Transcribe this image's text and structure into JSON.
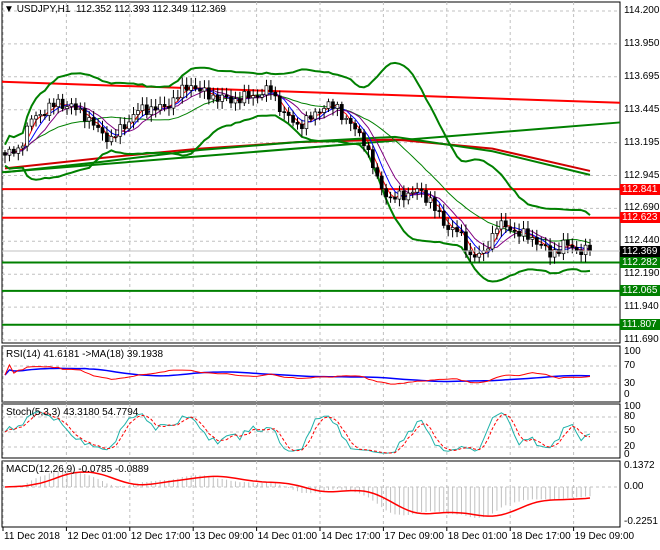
{
  "header": {
    "symbol": "USDJPY,H1",
    "open": "112.352",
    "high": "112.393",
    "low": "112.349",
    "close": "112.369"
  },
  "colors": {
    "resistance": "#ff0000",
    "support": "#008000",
    "bull": "#ffffff",
    "bear": "#000000",
    "rsi": "#ff0000",
    "rsi_ma": "#0000ff",
    "stoch_main": "#20b2aa",
    "stoch_signal": "#ff0000",
    "macd_hist": "#c0c0c0",
    "macd_signal": "#ff0000"
  },
  "chart_data": {
    "type": "candlestick",
    "title": "USDJPY,H1",
    "price_axis": {
      "ticks": [
        "114.200",
        "113.950",
        "113.695",
        "113.445",
        "113.195",
        "112.945",
        "112.690",
        "112.440",
        "112.190",
        "111.940",
        "111.690"
      ],
      "range": [
        111.69,
        114.2
      ]
    },
    "time_axis": {
      "ticks": [
        "11 Dec 2018",
        "12 Dec 01:00",
        "12 Dec 17:00",
        "13 Dec 09:00",
        "14 Dec 01:00",
        "14 Dec 17:00",
        "17 Dec 09:00",
        "18 Dec 01:00",
        "18 Dec 17:00",
        "19 Dec 09:00"
      ]
    },
    "grid": true,
    "closes": [
      113.1,
      113.14,
      113.37,
      113.44,
      113.5,
      113.47,
      113.41,
      113.29,
      113.22,
      113.33,
      113.44,
      113.46,
      113.46,
      113.56,
      113.64,
      113.57,
      113.54,
      113.52,
      113.54,
      113.56,
      113.6,
      113.41,
      113.33,
      113.38,
      113.48,
      113.46,
      113.33,
      113.22,
      112.91,
      112.76,
      112.8,
      112.83,
      112.76,
      112.57,
      112.53,
      112.34,
      112.34,
      112.57,
      112.54,
      112.49,
      112.45,
      112.34,
      112.42,
      112.38,
      112.369
    ],
    "current_price": "112.369",
    "levels": [
      {
        "price": "112.841",
        "type": "resistance"
      },
      {
        "price": "112.623",
        "type": "resistance"
      },
      {
        "price": "112.282",
        "type": "support"
      },
      {
        "price": "112.065",
        "type": "support"
      },
      {
        "price": "111.807",
        "type": "support"
      }
    ],
    "trendlines": [
      {
        "type": "resistance",
        "from": 113.66,
        "to": 113.5
      },
      {
        "type": "support",
        "from": 112.97,
        "to": 113.35
      }
    ],
    "long_ma_red": [
      113.0,
      113.08,
      113.15,
      113.2,
      113.22,
      113.15,
      112.98
    ],
    "long_ma_green": [
      112.97,
      113.05,
      113.14,
      113.2,
      113.24,
      113.13,
      112.95
    ],
    "indicators": {
      "rsi": {
        "label": "RSI(14) 41.6181  ->MA(18) 39.1938",
        "ticks": [
          "100",
          "70",
          "30",
          "0"
        ]
      },
      "stoch": {
        "label": "Stoch(5,3,3) 43.3180 54.7794",
        "ticks": [
          "100",
          "80",
          "50",
          "20",
          "0"
        ]
      },
      "macd": {
        "label": "MACD(12,26,9) -0.0785 -0.0889",
        "ticks": [
          "0.1372",
          "0.00",
          "-0.2251"
        ]
      }
    }
  }
}
